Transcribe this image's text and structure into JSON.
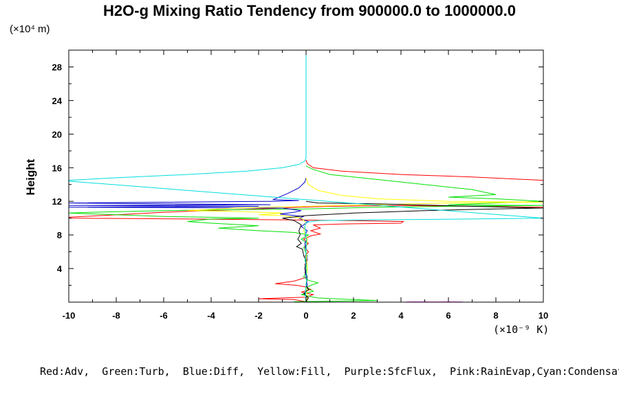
{
  "chart_data": {
    "type": "line",
    "title": "H2O-g Mixing Ratio Tendency from 900000.0 to 1000000.0",
    "ylabel": "Height",
    "y_unit": "(×10⁴ m)",
    "x_unit": "(×10⁻⁹ K)",
    "xlim": [
      -10,
      10
    ],
    "ylim": [
      0,
      30
    ],
    "x_ticks": [
      -10,
      -8,
      -6,
      -4,
      -2,
      0,
      2,
      4,
      6,
      8,
      10
    ],
    "y_ticks": [
      4,
      8,
      12,
      16,
      20,
      24,
      28
    ],
    "legend_text": "Red:Adv,  Green:Turb,  Blue:Diff,  Yellow:Fill,  Purple:SfcFlux,  Pink:RainEvap,Cyan:Condensation",
    "grid": false,
    "series": [
      {
        "color": "#ff0000",
        "points": [
          [
            0.0,
            16.9
          ],
          [
            0.05,
            16.5
          ],
          [
            0.3,
            16.0
          ],
          [
            1.5,
            15.6
          ],
          [
            4,
            15.2
          ],
          [
            7,
            14.9
          ],
          [
            10,
            14.5
          ],
          [
            10,
            11.3
          ],
          [
            4,
            11.5
          ],
          [
            1,
            11.4
          ],
          [
            -0.3,
            11.3
          ],
          [
            -1,
            11.2
          ],
          [
            -3,
            11.0
          ],
          [
            -6,
            10.7
          ],
          [
            -10,
            10.1
          ],
          [
            -10,
            10.0
          ],
          [
            -5,
            9.9
          ],
          [
            -1,
            9.8
          ],
          [
            2,
            9.7
          ],
          [
            4.1,
            9.6
          ],
          [
            4.0,
            9.4
          ],
          [
            1.5,
            9.3
          ],
          [
            0.3,
            9.2
          ],
          [
            0.6,
            8.8
          ],
          [
            0.2,
            8.5
          ],
          [
            0.6,
            8.1
          ],
          [
            0.2,
            7.9
          ],
          [
            -0.1,
            7.5
          ],
          [
            0.1,
            7.0
          ],
          [
            -0.05,
            6.5
          ],
          [
            0.1,
            6.0
          ],
          [
            -0.05,
            5.5
          ],
          [
            0.05,
            5.0
          ],
          [
            -0.05,
            4.5
          ],
          [
            0.0,
            4.0
          ],
          [
            -0.05,
            3.5
          ],
          [
            0.05,
            3.0
          ],
          [
            -0.5,
            2.5
          ],
          [
            -1.3,
            2.2
          ],
          [
            -0.4,
            2.0
          ],
          [
            0.0,
            1.8
          ],
          [
            0.2,
            1.5
          ],
          [
            -0.2,
            1.2
          ],
          [
            0.3,
            0.9
          ],
          [
            0.0,
            0.6
          ],
          [
            -2,
            0.4
          ],
          [
            -0.5,
            0.3
          ],
          [
            0.0,
            0.05
          ]
        ]
      },
      {
        "color": "#00e000",
        "points": [
          [
            0.0,
            16.2
          ],
          [
            0.3,
            15.8
          ],
          [
            1,
            15.2
          ],
          [
            3,
            14.6
          ],
          [
            5,
            14.0
          ],
          [
            7,
            13.4
          ],
          [
            8,
            12.8
          ],
          [
            6,
            12.5
          ],
          [
            8,
            12.3
          ],
          [
            10,
            12.0
          ],
          [
            8,
            11.8
          ],
          [
            6,
            11.6
          ],
          [
            10,
            11.5
          ],
          [
            6,
            11.4
          ],
          [
            3,
            11.3
          ],
          [
            0,
            11.1
          ],
          [
            -3,
            11.0
          ],
          [
            -6,
            10.9
          ],
          [
            -9,
            10.7
          ],
          [
            -10,
            10.6
          ],
          [
            -8,
            10.4
          ],
          [
            -6,
            10.2
          ],
          [
            -4,
            10.1
          ],
          [
            -2,
            10.0
          ],
          [
            -4,
            9.9
          ],
          [
            -5,
            9.6
          ],
          [
            -4,
            9.4
          ],
          [
            -2,
            9.1
          ],
          [
            -3.7,
            8.8
          ],
          [
            -2,
            8.5
          ],
          [
            -0.5,
            8.3
          ],
          [
            0.1,
            8.0
          ],
          [
            -0.2,
            7.5
          ],
          [
            0.05,
            7.0
          ],
          [
            -0.1,
            6.5
          ],
          [
            0.05,
            5.5
          ],
          [
            -0.05,
            5.0
          ],
          [
            0.05,
            4.0
          ],
          [
            -0.1,
            3.0
          ],
          [
            0.1,
            2.6
          ],
          [
            0.5,
            2.3
          ],
          [
            0.2,
            2.0
          ],
          [
            0.0,
            1.7
          ],
          [
            0.3,
            1.3
          ],
          [
            -0.2,
            0.9
          ],
          [
            0.3,
            0.6
          ],
          [
            0.5,
            0.5
          ],
          [
            2,
            0.3
          ],
          [
            3,
            0.2
          ],
          [
            1,
            0.1
          ],
          [
            -0.5,
            0.05
          ]
        ]
      },
      {
        "color": "#0000cc",
        "points": [
          [
            0.0,
            14.8
          ],
          [
            -0.05,
            14.3
          ],
          [
            -0.3,
            13.6
          ],
          [
            -0.8,
            12.9
          ],
          [
            -1.4,
            12.2
          ],
          [
            -0.3,
            12.1
          ],
          [
            -1.5,
            12.0
          ],
          [
            -10,
            11.8
          ],
          [
            -1.5,
            11.6
          ],
          [
            -10,
            11.5
          ],
          [
            -2,
            11.4
          ],
          [
            -10,
            11.3
          ],
          [
            -1,
            11.2
          ],
          [
            -0.2,
            10.9
          ],
          [
            -0.5,
            10.7
          ],
          [
            -1.1,
            10.5
          ],
          [
            -0.1,
            10.2
          ],
          [
            -0.3,
            10.0
          ],
          [
            0.1,
            9.6
          ],
          [
            -0.2,
            9.0
          ],
          [
            0.05,
            8.5
          ],
          [
            -0.05,
            8.0
          ],
          [
            0.05,
            7.5
          ],
          [
            -0.05,
            7.0
          ],
          [
            0.0,
            6.0
          ],
          [
            0.05,
            5.0
          ],
          [
            -0.05,
            4.0
          ],
          [
            0.0,
            3.0
          ],
          [
            0.05,
            2.0
          ],
          [
            -0.05,
            1.0
          ],
          [
            0.05,
            0.5
          ],
          [
            0.0,
            0.05
          ]
        ]
      },
      {
        "color": "#ffff00",
        "points": [
          [
            0.0,
            14.8
          ],
          [
            0.1,
            14.0
          ],
          [
            0.5,
            13.3
          ],
          [
            1.5,
            12.7
          ],
          [
            3,
            12.3
          ],
          [
            6,
            12.0
          ],
          [
            10,
            11.9
          ],
          [
            6,
            11.8
          ],
          [
            3,
            11.6
          ],
          [
            0,
            11.4
          ],
          [
            -3,
            11.2
          ],
          [
            -5,
            10.9
          ],
          [
            -3,
            10.8
          ],
          [
            -1,
            10.6
          ],
          [
            -2,
            10.4
          ],
          [
            -1,
            10.3
          ],
          [
            -0.2,
            10.0
          ],
          [
            0,
            9.5
          ],
          [
            -0.1,
            8.5
          ],
          [
            0.05,
            7.5
          ],
          [
            0.0,
            6.0
          ],
          [
            0.05,
            4.0
          ],
          [
            0.0,
            2.0
          ],
          [
            0.05,
            0.5
          ],
          [
            0.0,
            0.05
          ]
        ]
      },
      {
        "color": "#000000",
        "points": [
          [
            0.0,
            12.0
          ],
          [
            0.5,
            11.8
          ],
          [
            3,
            11.7
          ],
          [
            7,
            11.4
          ],
          [
            10,
            11.2
          ],
          [
            8,
            11.1
          ],
          [
            5,
            10.9
          ],
          [
            2,
            10.6
          ],
          [
            0,
            10.3
          ],
          [
            -1,
            10.0
          ],
          [
            -0.5,
            9.7
          ],
          [
            -0.2,
            9.2
          ],
          [
            -0.3,
            8.5
          ],
          [
            -0.25,
            8.0
          ],
          [
            -0.35,
            7.5
          ],
          [
            -0.2,
            7.0
          ],
          [
            -0.4,
            6.6
          ],
          [
            -0.15,
            6.3
          ],
          [
            -0.1,
            5.5
          ],
          [
            0.0,
            5.0
          ],
          [
            -0.05,
            4.0
          ],
          [
            0.05,
            3.0
          ],
          [
            0.0,
            2.0
          ],
          [
            0.1,
            1.5
          ],
          [
            -0.1,
            1.0
          ],
          [
            0.1,
            0.5
          ],
          [
            0.0,
            0.05
          ]
        ]
      },
      {
        "color": "#ff00ff",
        "points": [
          [
            4.2,
            0.02
          ],
          [
            4.6,
            0.03
          ],
          [
            5.5,
            0.02
          ],
          [
            6.0,
            0.03
          ],
          [
            6.6,
            0.02
          ]
        ]
      },
      {
        "color": "#00dddd",
        "points": [
          [
            0.0,
            29.9
          ],
          [
            0.0,
            17.2
          ],
          [
            -0.05,
            16.8
          ],
          [
            -0.3,
            16.4
          ],
          [
            -1,
            16.0
          ],
          [
            -2.5,
            15.6
          ],
          [
            -5,
            15.2
          ],
          [
            -8,
            14.8
          ],
          [
            -10,
            14.5
          ],
          [
            -10,
            14.4
          ],
          [
            10,
            10.0
          ],
          [
            7,
            9.9
          ],
          [
            3,
            9.8
          ],
          [
            0.5,
            9.7
          ],
          [
            0.0,
            9.5
          ],
          [
            -0.05,
            9.0
          ],
          [
            0.02,
            7.0
          ],
          [
            -0.03,
            5.0
          ],
          [
            0.03,
            3.0
          ],
          [
            -0.03,
            1.0
          ],
          [
            0.0,
            0.05
          ]
        ]
      }
    ]
  }
}
